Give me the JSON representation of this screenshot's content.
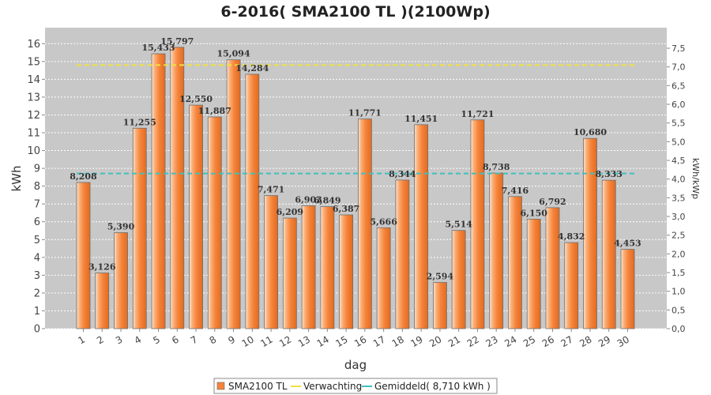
{
  "chart_data": {
    "type": "bar",
    "title": "6-2016( SMA2100 TL )(2100Wp)",
    "xlabel": "dag",
    "ylabel": "kWh",
    "ylabel_right": "kWh/kWp",
    "ylim": [
      0,
      16.9
    ],
    "ylim_right": [
      0,
      8.05
    ],
    "yticks": [
      "0",
      "1",
      "2",
      "3",
      "4",
      "5",
      "6",
      "7",
      "8",
      "9",
      "10",
      "11",
      "12",
      "13",
      "14",
      "15",
      "16"
    ],
    "yticks_right": [
      "0,0",
      "0,5",
      "1,0",
      "1,5",
      "2,0",
      "2,5",
      "3,0",
      "3,5",
      "4,0",
      "4,5",
      "5,0",
      "5,5",
      "6,0",
      "6,5",
      "7,0",
      "7,5"
    ],
    "categories": [
      "1",
      "2",
      "3",
      "4",
      "5",
      "6",
      "7",
      "8",
      "9",
      "10",
      "11",
      "12",
      "13",
      "14",
      "15",
      "16",
      "17",
      "18",
      "19",
      "20",
      "21",
      "22",
      "23",
      "24",
      "25",
      "26",
      "27",
      "28",
      "29",
      "30"
    ],
    "series": [
      {
        "name": "SMA2100 TL",
        "color": "#f5843a",
        "values": [
          8.208,
          3.126,
          5.39,
          11.255,
          15.433,
          15.797,
          12.55,
          11.887,
          15.094,
          14.284,
          7.471,
          6.209,
          6.903,
          6.849,
          6.387,
          11.771,
          5.666,
          8.344,
          11.451,
          2.594,
          5.514,
          11.721,
          8.738,
          7.416,
          6.15,
          6.792,
          4.832,
          10.68,
          8.333,
          4.453
        ],
        "labels": [
          "8,208",
          "3,126",
          "5,390",
          "11,255",
          "15,433",
          "15,797",
          "12,550",
          "11,887",
          "15,094",
          "14,284",
          "7,471",
          "6,209",
          "6,903",
          "6,849",
          "6,387",
          "11,771",
          "5,666",
          "8,344",
          "11,451",
          "2,594",
          "5,514",
          "11,721",
          "8,738",
          "7,416",
          "6,150",
          "6,792",
          "4,832",
          "10,680",
          "8,333",
          "4,453"
        ]
      }
    ],
    "reference_lines": [
      {
        "name": "Verwachting",
        "value": 14.8,
        "color": "#f0e040",
        "style": "dashed"
      },
      {
        "name": "Gemiddeld( 8,710 kWh )",
        "value": 8.71,
        "color": "#40c0c0",
        "style": "dashed"
      }
    ],
    "plot_background": "#c8c8c8",
    "grid": true,
    "legend": {
      "position": "bottom",
      "items": [
        {
          "label": "SMA2100 TL",
          "color": "#f5843a",
          "kind": "box"
        },
        {
          "label": "Verwachting",
          "color": "#f0e040",
          "kind": "line"
        },
        {
          "label": "Gemiddeld( 8,710 kWh )",
          "color": "#40c0c0",
          "kind": "line"
        }
      ]
    }
  }
}
